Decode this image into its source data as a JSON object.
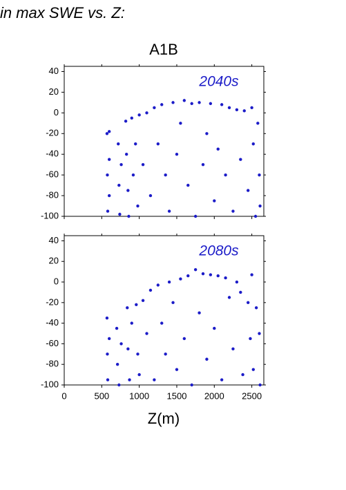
{
  "page": {
    "heading": "in max SWE vs. Z:",
    "scenario": "A1B",
    "x_label": "Z(m)"
  },
  "chart_data": [
    {
      "type": "scatter",
      "annotation": "2040s",
      "color": "#1c1cc8",
      "x": [
        570,
        575,
        580,
        600,
        600,
        600,
        720,
        730,
        740,
        760,
        820,
        830,
        850,
        860,
        900,
        920,
        950,
        980,
        1000,
        1050,
        1100,
        1150,
        1200,
        1250,
        1300,
        1350,
        1400,
        1450,
        1500,
        1550,
        1600,
        1650,
        1700,
        1750,
        1800,
        1850,
        1900,
        1950,
        2000,
        2050,
        2100,
        2150,
        2200,
        2250,
        2300,
        2350,
        2400,
        2450,
        2500,
        2520,
        2550,
        2580,
        2600,
        2610
      ],
      "y": [
        -20,
        -60,
        -95,
        -18,
        -45,
        -80,
        -30,
        -70,
        -98,
        -50,
        -8,
        -40,
        -75,
        -100,
        -5,
        -60,
        -30,
        -90,
        -2,
        -50,
        0,
        -80,
        5,
        -30,
        8,
        -60,
        -95,
        10,
        -40,
        -10,
        12,
        -70,
        9,
        -100,
        10,
        -50,
        -20,
        9,
        -85,
        -35,
        8,
        -60,
        5,
        -95,
        3,
        -45,
        2,
        -75,
        5,
        -30,
        -100,
        -10,
        -60,
        -90
      ],
      "xlim": [
        0,
        2660
      ],
      "ylim": [
        -100,
        45
      ],
      "yticks": [
        -100,
        -80,
        -60,
        -40,
        -20,
        0,
        20,
        40
      ]
    },
    {
      "type": "scatter",
      "annotation": "2080s",
      "color": "#1c1cc8",
      "x": [
        570,
        575,
        580,
        600,
        700,
        710,
        730,
        760,
        840,
        850,
        870,
        900,
        960,
        980,
        1000,
        1050,
        1100,
        1150,
        1200,
        1250,
        1300,
        1350,
        1400,
        1450,
        1500,
        1550,
        1600,
        1650,
        1700,
        1750,
        1800,
        1850,
        1900,
        1950,
        2000,
        2050,
        2100,
        2150,
        2200,
        2250,
        2300,
        2350,
        2380,
        2450,
        2480,
        2500,
        2520,
        2560,
        2600,
        2610
      ],
      "y": [
        -35,
        -70,
        -95,
        -55,
        -45,
        -80,
        -100,
        -60,
        -25,
        -65,
        -95,
        -40,
        -22,
        -70,
        -90,
        -18,
        -50,
        -8,
        -95,
        -3,
        -40,
        -70,
        0,
        -20,
        -85,
        3,
        -55,
        6,
        -100,
        12,
        -30,
        8,
        -75,
        7,
        -45,
        6,
        -95,
        4,
        -15,
        -65,
        0,
        -10,
        -90,
        -20,
        -55,
        7,
        -85,
        -25,
        -50,
        -100
      ],
      "xlim": [
        0,
        2660
      ],
      "ylim": [
        -100,
        45
      ],
      "yticks": [
        -100,
        -80,
        -60,
        -40,
        -20,
        0,
        20,
        40
      ],
      "xticks": [
        0,
        500,
        1000,
        1500,
        2000,
        2500
      ]
    }
  ]
}
